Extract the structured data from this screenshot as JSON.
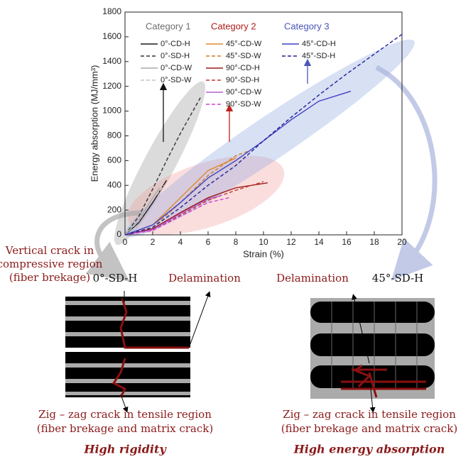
{
  "chart_data": {
    "type": "line",
    "xlabel": "Strain (%)",
    "ylabel": "Energy absorption (MJ/mm³)",
    "xlim": [
      0,
      20
    ],
    "xticks": [
      0,
      2,
      4,
      6,
      8,
      10,
      12,
      14,
      16,
      18,
      20
    ],
    "ylim": [
      0,
      1800
    ],
    "yticks": [
      0,
      200,
      400,
      600,
      800,
      1000,
      1200,
      1400,
      1600,
      1800
    ],
    "annotations": [
      {
        "text": "Category 1",
        "color": "#6e6e6e"
      },
      {
        "text": "Category 2",
        "color": "#b01c1c"
      },
      {
        "text": "Category 3",
        "color": "#4a55b8"
      }
    ],
    "series": [
      {
        "name": "0°-CD-H",
        "color": "#1a1a1a",
        "dash": false,
        "x": [
          0,
          1,
          2,
          3
        ],
        "values": [
          0,
          100,
          260,
          440
        ]
      },
      {
        "name": "0°-SD-H",
        "color": "#333333",
        "dash": true,
        "x": [
          0,
          1,
          2,
          3,
          4,
          5,
          5.5
        ],
        "values": [
          0,
          150,
          370,
          600,
          820,
          1020,
          1120
        ]
      },
      {
        "name": "0°-CD-W",
        "color": "#aaaaaa",
        "dash": false,
        "x": [
          0,
          1,
          2,
          2.5
        ],
        "values": [
          0,
          120,
          300,
          380
        ]
      },
      {
        "name": "0°-SD-W",
        "color": "#c4c4c4",
        "dash": true,
        "x": [
          0,
          1,
          2,
          2.8
        ],
        "values": [
          0,
          110,
          280,
          400
        ]
      },
      {
        "name": "45°-CD-W",
        "color": "#e08a2c",
        "dash": false,
        "x": [
          0,
          2,
          4,
          6,
          8
        ],
        "values": [
          0,
          80,
          300,
          520,
          620
        ]
      },
      {
        "name": "45°-SD-W",
        "color": "#d07a20",
        "dash": true,
        "x": [
          0,
          2,
          4,
          6,
          8,
          9
        ],
        "values": [
          0,
          60,
          260,
          480,
          640,
          680
        ]
      },
      {
        "name": "90°-CD-H",
        "color": "#9b1c1c",
        "dash": false,
        "x": [
          0,
          2,
          4,
          6,
          8,
          10.3
        ],
        "values": [
          0,
          50,
          180,
          300,
          380,
          420
        ]
      },
      {
        "name": "90°-SD-H",
        "color": "#c0392b",
        "dash": true,
        "x": [
          0,
          2,
          4,
          6,
          8,
          10
        ],
        "values": [
          0,
          40,
          160,
          280,
          360,
          430
        ]
      },
      {
        "name": "90°-CD-W",
        "color": "#b060d0",
        "dash": false,
        "x": [
          0,
          2,
          4,
          6,
          7
        ],
        "values": [
          0,
          40,
          170,
          290,
          320
        ]
      },
      {
        "name": "90°-SD-W",
        "color": "#d040d0",
        "dash": true,
        "x": [
          0,
          2,
          4,
          6,
          7.5
        ],
        "values": [
          0,
          35,
          150,
          260,
          300
        ]
      },
      {
        "name": "45°-CD-H",
        "color": "#4040c0",
        "dash": false,
        "x": [
          0,
          2,
          4,
          6,
          8,
          10,
          12,
          14,
          16.3
        ],
        "values": [
          0,
          80,
          260,
          460,
          600,
          760,
          930,
          1080,
          1160
        ]
      },
      {
        "name": "45°-SD-H",
        "color": "#20209a",
        "dash": true,
        "x": [
          0,
          2,
          4,
          6,
          8,
          10,
          12,
          14,
          16,
          18,
          20
        ],
        "values": [
          0,
          60,
          220,
          400,
          560,
          760,
          950,
          1130,
          1300,
          1460,
          1620
        ]
      }
    ]
  },
  "panels": [
    {
      "top_lines": [
        "Vertical crack in",
        "compressive region",
        "(fiber brekage)"
      ],
      "title": "0°-SD-H",
      "callout": "Delamination",
      "bottom_lines": [
        "Zig – zag crack in tensile region",
        "(fiber brekage and matrix crack)"
      ],
      "caption": "High rigidity"
    },
    {
      "top_lines": [],
      "title": "45°-SD-H",
      "callout": "Delamination",
      "bottom_lines": [
        "Zig – zag crack in tensile region",
        "(fiber brekage and matrix crack)"
      ],
      "caption": "High energy absorption"
    }
  ]
}
